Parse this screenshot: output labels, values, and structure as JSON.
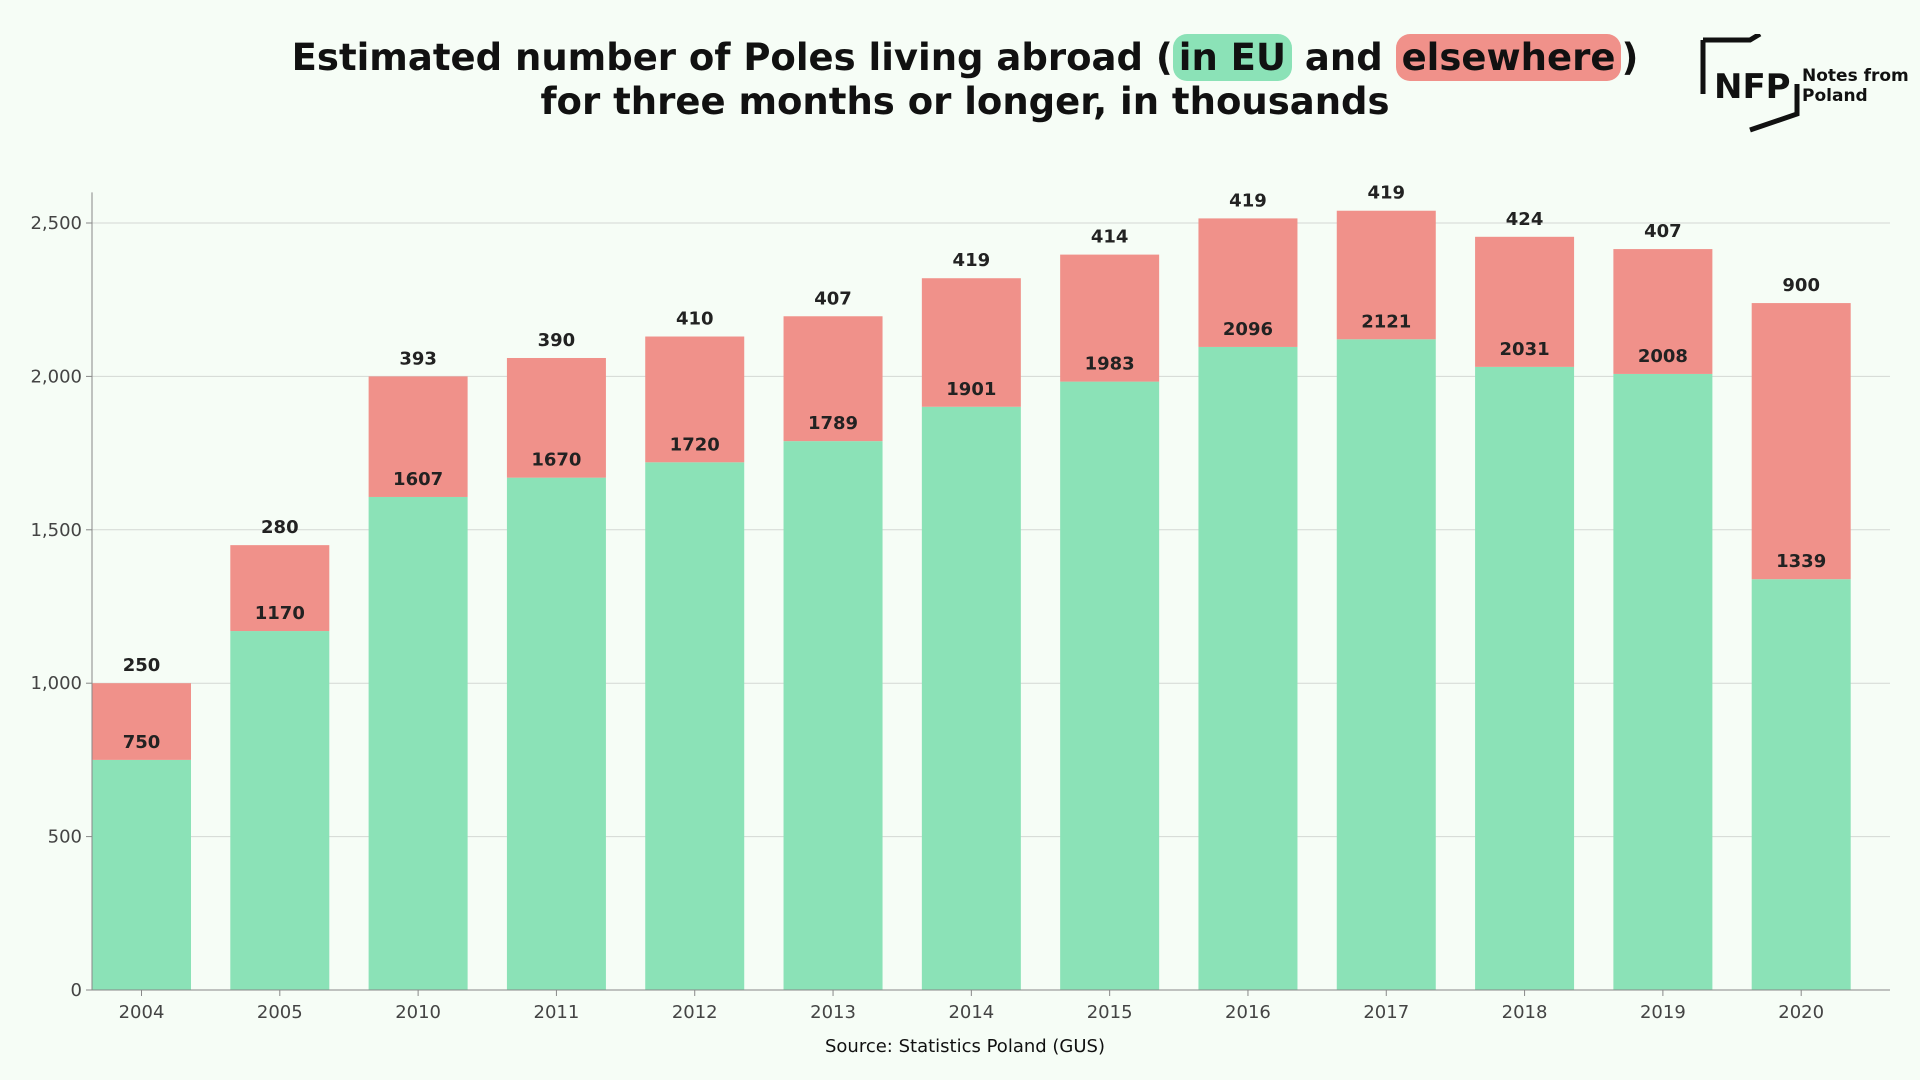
{
  "title": {
    "part1": "Estimated number of Poles living abroad (",
    "eu": "in EU",
    "and": " and ",
    "elsewhere": "elsewhere",
    "part2": ")",
    "line2": "for three months or longer, in thousands"
  },
  "logo": {
    "mark": "NFP",
    "line1": "Notes from",
    "line2": "Poland"
  },
  "source": "Source: Statistics Poland (GUS)",
  "colors": {
    "eu": "#8be2b7",
    "elsewhere": "#f0918a",
    "grid": "#d4d8d4",
    "axis": "#888888"
  },
  "chart_data": {
    "type": "bar",
    "stacked": true,
    "categories": [
      "2004",
      "2005",
      "2010",
      "2011",
      "2012",
      "2013",
      "2014",
      "2015",
      "2016",
      "2017",
      "2018",
      "2019",
      "2020"
    ],
    "series": [
      {
        "name": "in EU",
        "values": [
          750,
          1170,
          1607,
          1670,
          1720,
          1789,
          1901,
          1983,
          2096,
          2121,
          2031,
          2008,
          1339
        ]
      },
      {
        "name": "elsewhere",
        "values": [
          250,
          280,
          393,
          390,
          410,
          407,
          419,
          414,
          419,
          419,
          424,
          407,
          900
        ]
      }
    ],
    "yticks": [
      "0",
      "500",
      "1,000",
      "1,500",
      "2,000",
      "2,500"
    ],
    "ylim": [
      0,
      2600
    ],
    "grid": true
  }
}
